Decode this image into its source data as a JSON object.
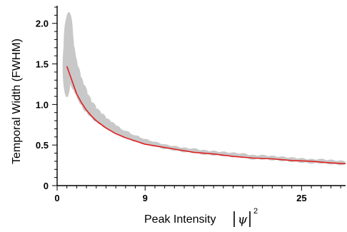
{
  "chart_data": {
    "type": "scatter",
    "title": "",
    "xlabel_prefix": "Peak Intensity",
    "xlabel_symbol": "ψ",
    "xlabel_exponent": "2",
    "ylabel": "Temporal Width (FWHM)",
    "xlim": [
      0,
      29.5
    ],
    "ylim": [
      0,
      2.2
    ],
    "x_ticks": [
      {
        "value": 0,
        "label": "0"
      },
      {
        "value": 9,
        "label": "9"
      },
      {
        "value": 25,
        "label": "25"
      }
    ],
    "y_ticks": [
      {
        "value": 0,
        "label": "0"
      },
      {
        "value": 0.5,
        "label": "0.5"
      },
      {
        "value": 1.0,
        "label": "1.0"
      },
      {
        "value": 1.5,
        "label": "1.5"
      },
      {
        "value": 2.0,
        "label": "2.0"
      }
    ],
    "grid": false,
    "legend": "none",
    "scatter_color": "#c8c8c8",
    "fit_color": "#e02020",
    "series": [
      {
        "kind": "scatter",
        "x": [
          1.0,
          1.1,
          1.2,
          1.3,
          1.5,
          1.7,
          2.0,
          2.3,
          2.6,
          3.0,
          3.5,
          4.0,
          4.5,
          5.0,
          5.5,
          6.0,
          7.0,
          8.0,
          9.0,
          10.0,
          11.0,
          12.0,
          13.0,
          14.0,
          15.0,
          16.0,
          17.0,
          18.0,
          19.0,
          20.0,
          21.0,
          22.0,
          23.0,
          24.0,
          25.0,
          26.0,
          27.0,
          28.0,
          29.0
        ],
        "y": [
          1.47,
          1.7,
          1.8,
          1.66,
          1.51,
          1.4,
          1.3,
          1.2,
          1.12,
          1.02,
          0.94,
          0.87,
          0.82,
          0.77,
          0.73,
          0.69,
          0.63,
          0.58,
          0.54,
          0.51,
          0.48,
          0.46,
          0.44,
          0.43,
          0.41,
          0.4,
          0.39,
          0.38,
          0.37,
          0.35,
          0.35,
          0.34,
          0.33,
          0.32,
          0.31,
          0.3,
          0.3,
          0.29,
          0.28
        ],
        "spread": [
          0.38,
          0.4,
          0.34,
          0.3,
          0.25,
          0.22,
          0.18,
          0.15,
          0.13,
          0.11,
          0.09,
          0.08,
          0.07,
          0.06,
          0.055,
          0.05,
          0.045,
          0.04,
          0.035,
          0.03,
          0.028,
          0.026,
          0.024,
          0.022,
          0.02,
          0.02,
          0.018,
          0.018,
          0.016,
          0.016,
          0.015,
          0.015,
          0.014,
          0.014,
          0.013,
          0.013,
          0.012,
          0.012,
          0.012
        ]
      },
      {
        "kind": "line",
        "x": [
          1.0,
          1.5,
          2.0,
          2.5,
          3.0,
          3.5,
          4.0,
          5.0,
          6.0,
          7.0,
          8.0,
          9.0,
          10.0,
          12.0,
          14.0,
          16.0,
          18.0,
          20.0,
          22.0,
          24.0,
          26.0,
          28.0,
          29.5
        ],
        "y": [
          1.47,
          1.3,
          1.13,
          1.02,
          0.93,
          0.86,
          0.8,
          0.71,
          0.64,
          0.59,
          0.55,
          0.51,
          0.49,
          0.45,
          0.41,
          0.39,
          0.36,
          0.34,
          0.33,
          0.31,
          0.3,
          0.28,
          0.27
        ]
      }
    ]
  }
}
